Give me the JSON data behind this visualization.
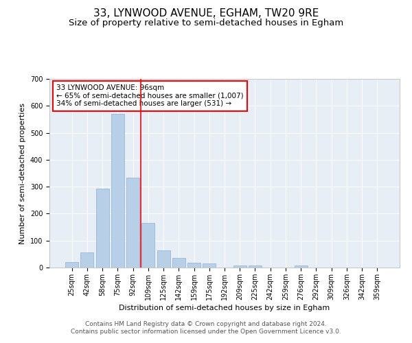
{
  "title": "33, LYNWOOD AVENUE, EGHAM, TW20 9RE",
  "subtitle": "Size of property relative to semi-detached houses in Egham",
  "xlabel": "Distribution of semi-detached houses by size in Egham",
  "ylabel": "Number of semi-detached properties",
  "categories": [
    "25sqm",
    "42sqm",
    "58sqm",
    "75sqm",
    "92sqm",
    "109sqm",
    "125sqm",
    "142sqm",
    "159sqm",
    "175sqm",
    "192sqm",
    "209sqm",
    "225sqm",
    "242sqm",
    "259sqm",
    "276sqm",
    "292sqm",
    "309sqm",
    "326sqm",
    "342sqm",
    "359sqm"
  ],
  "values": [
    20,
    57,
    293,
    570,
    333,
    165,
    63,
    35,
    17,
    15,
    0,
    8,
    8,
    0,
    0,
    8,
    0,
    0,
    0,
    0,
    0
  ],
  "bar_color": "#b8cfe8",
  "bar_edge_color": "#8fb0d4",
  "vline_x": 4.5,
  "vline_color": "red",
  "annotation_text": "33 LYNWOOD AVENUE: 96sqm\n← 65% of semi-detached houses are smaller (1,007)\n34% of semi-detached houses are larger (531) →",
  "annotation_box_color": "white",
  "annotation_box_edge": "red",
  "ylim": [
    0,
    700
  ],
  "yticks": [
    0,
    100,
    200,
    300,
    400,
    500,
    600,
    700
  ],
  "footer": "Contains HM Land Registry data © Crown copyright and database right 2024.\nContains public sector information licensed under the Open Government Licence v3.0.",
  "bg_color": "#e8eef6",
  "title_fontsize": 11,
  "subtitle_fontsize": 9.5,
  "axis_label_fontsize": 8,
  "tick_fontsize": 7,
  "annotation_fontsize": 7.5,
  "footer_fontsize": 6.5
}
